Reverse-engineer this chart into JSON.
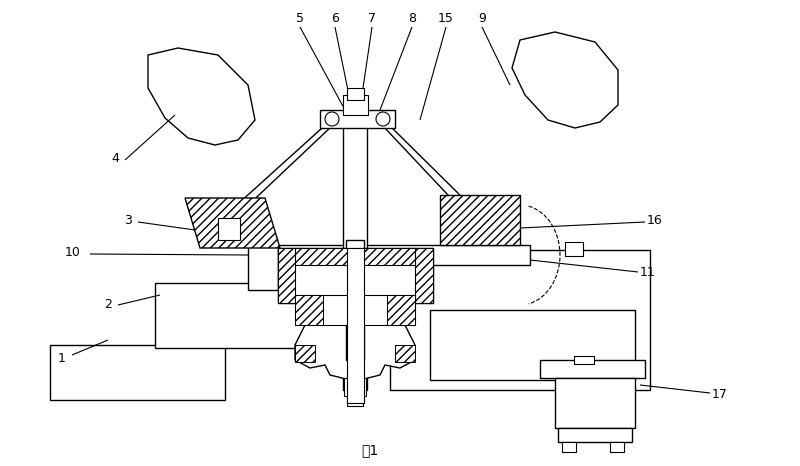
{
  "figsize": [
    8.0,
    4.66
  ],
  "dpi": 100,
  "bg": "#ffffff",
  "caption": "图1",
  "lc": "#000000"
}
